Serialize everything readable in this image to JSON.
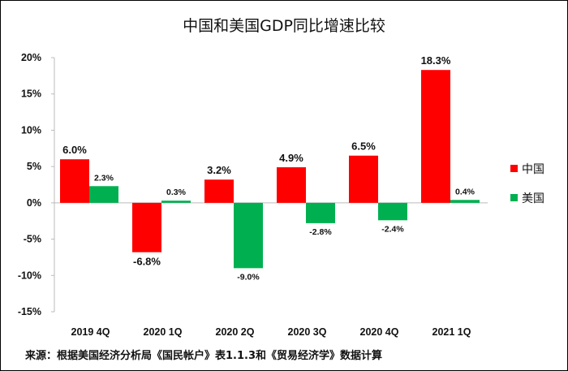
{
  "chart_data": {
    "type": "bar",
    "title": "中国和美国GDP同比增速比较",
    "categories": [
      "2019 4Q",
      "2020 1Q",
      "2020 2Q",
      "2020 3Q",
      "2020 4Q",
      "2021 1Q"
    ],
    "series": [
      {
        "name": "中国",
        "color": "#FF0000",
        "values": [
          6.0,
          -6.8,
          3.2,
          4.9,
          6.5,
          18.3
        ],
        "labels": [
          "6.0%",
          "-6.8%",
          "3.2%",
          "4.9%",
          "6.5%",
          "18.3%"
        ]
      },
      {
        "name": "美国",
        "color": "#00B050",
        "values": [
          2.3,
          0.3,
          -9.0,
          -2.8,
          -2.4,
          0.4
        ],
        "labels": [
          "2.3%",
          "0.3%",
          "-9.0%",
          "-2.8%",
          "-2.4%",
          "0.4%"
        ]
      }
    ],
    "ylim": [
      -15,
      20
    ],
    "yticks": [
      20,
      15,
      10,
      5,
      0,
      -5,
      -10,
      -15
    ],
    "ytick_labels": [
      "20%",
      "15%",
      "10%",
      "5%",
      "0%",
      "-5%",
      "-10%",
      "-15%"
    ],
    "xlabel": "",
    "ylabel": "",
    "grid": false,
    "legend_position": "right"
  },
  "source_note": "来源：根据美国经济分析局《国民帐户》表1.1.3和《贸易经济学》数据计算"
}
